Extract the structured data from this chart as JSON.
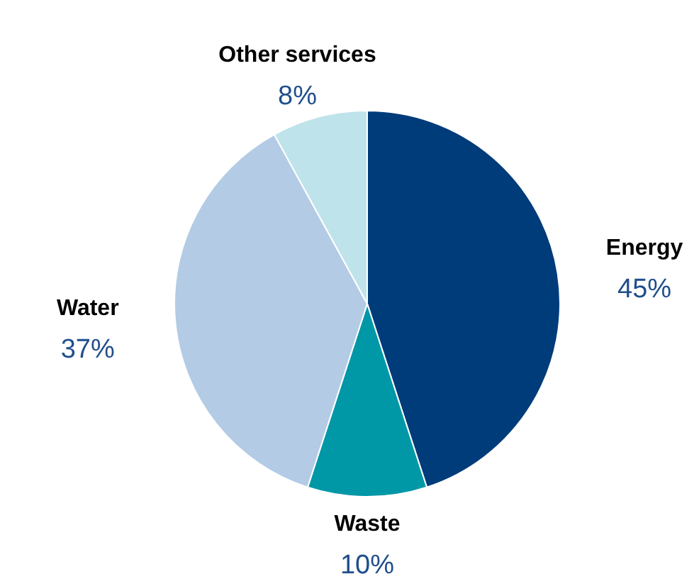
{
  "chart_data": {
    "type": "pie",
    "categories": [
      "Energy",
      "Waste",
      "Water",
      "Other services"
    ],
    "values": [
      45,
      10,
      37,
      8
    ],
    "colors": [
      "#003b7a",
      "#0097a7",
      "#b3cbe5",
      "#bfe3ea"
    ],
    "value_labels": [
      "45%",
      "10%",
      "37%",
      "8%"
    ],
    "legend": false
  }
}
